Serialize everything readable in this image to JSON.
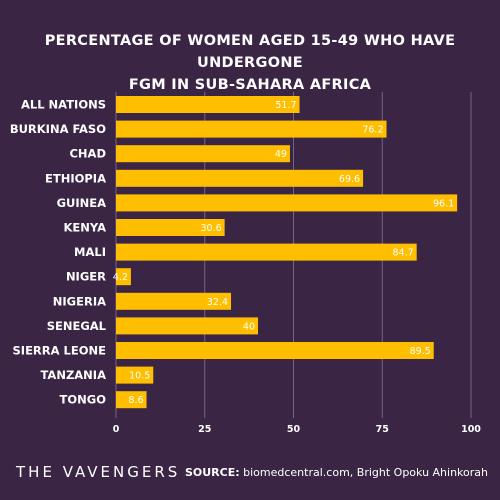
{
  "chart_data": {
    "type": "bar",
    "orientation": "horizontal",
    "title_lines": [
      "PERCENTAGE OF WOMEN AGED 15-49 WHO HAVE UNDERGONE",
      "FGM IN SUB-SAHARA AFRICA"
    ],
    "categories": [
      "ALL NATIONS",
      "BURKINA FASO",
      "CHAD",
      "ETHIOPIA",
      "GUINEA",
      "KENYA",
      "MALI",
      "NIGER",
      "NIGERIA",
      "SENEGAL",
      "SIERRA LEONE",
      "TANZANIA",
      "TONGO"
    ],
    "values": [
      51.7,
      76.2,
      49,
      69.6,
      96.1,
      30.6,
      84.7,
      4.2,
      32.4,
      40,
      89.5,
      10.5,
      8.6
    ],
    "value_labels": [
      "51.7",
      "76.2",
      "49",
      "69.6",
      "96.1",
      "30.6",
      "84.7",
      "4.2",
      "32.4",
      "40",
      "89.5",
      "10.5",
      "8.6"
    ],
    "xticks": [
      "0",
      "25",
      "50",
      "75",
      "100"
    ],
    "xlim": [
      0,
      100
    ],
    "xlabel": "",
    "ylabel": "",
    "grid": "vertical",
    "legend": "none",
    "colors": {
      "background": "#3b2545",
      "bar": "#ffbf00",
      "grid": "#a89aae",
      "text": "#ffffff"
    }
  },
  "footer": {
    "brand": "THE VAVENGERS",
    "source_label": "SOURCE:",
    "source_text": " biomedcentral.com, Bright Opoku Ahinkorah"
  }
}
